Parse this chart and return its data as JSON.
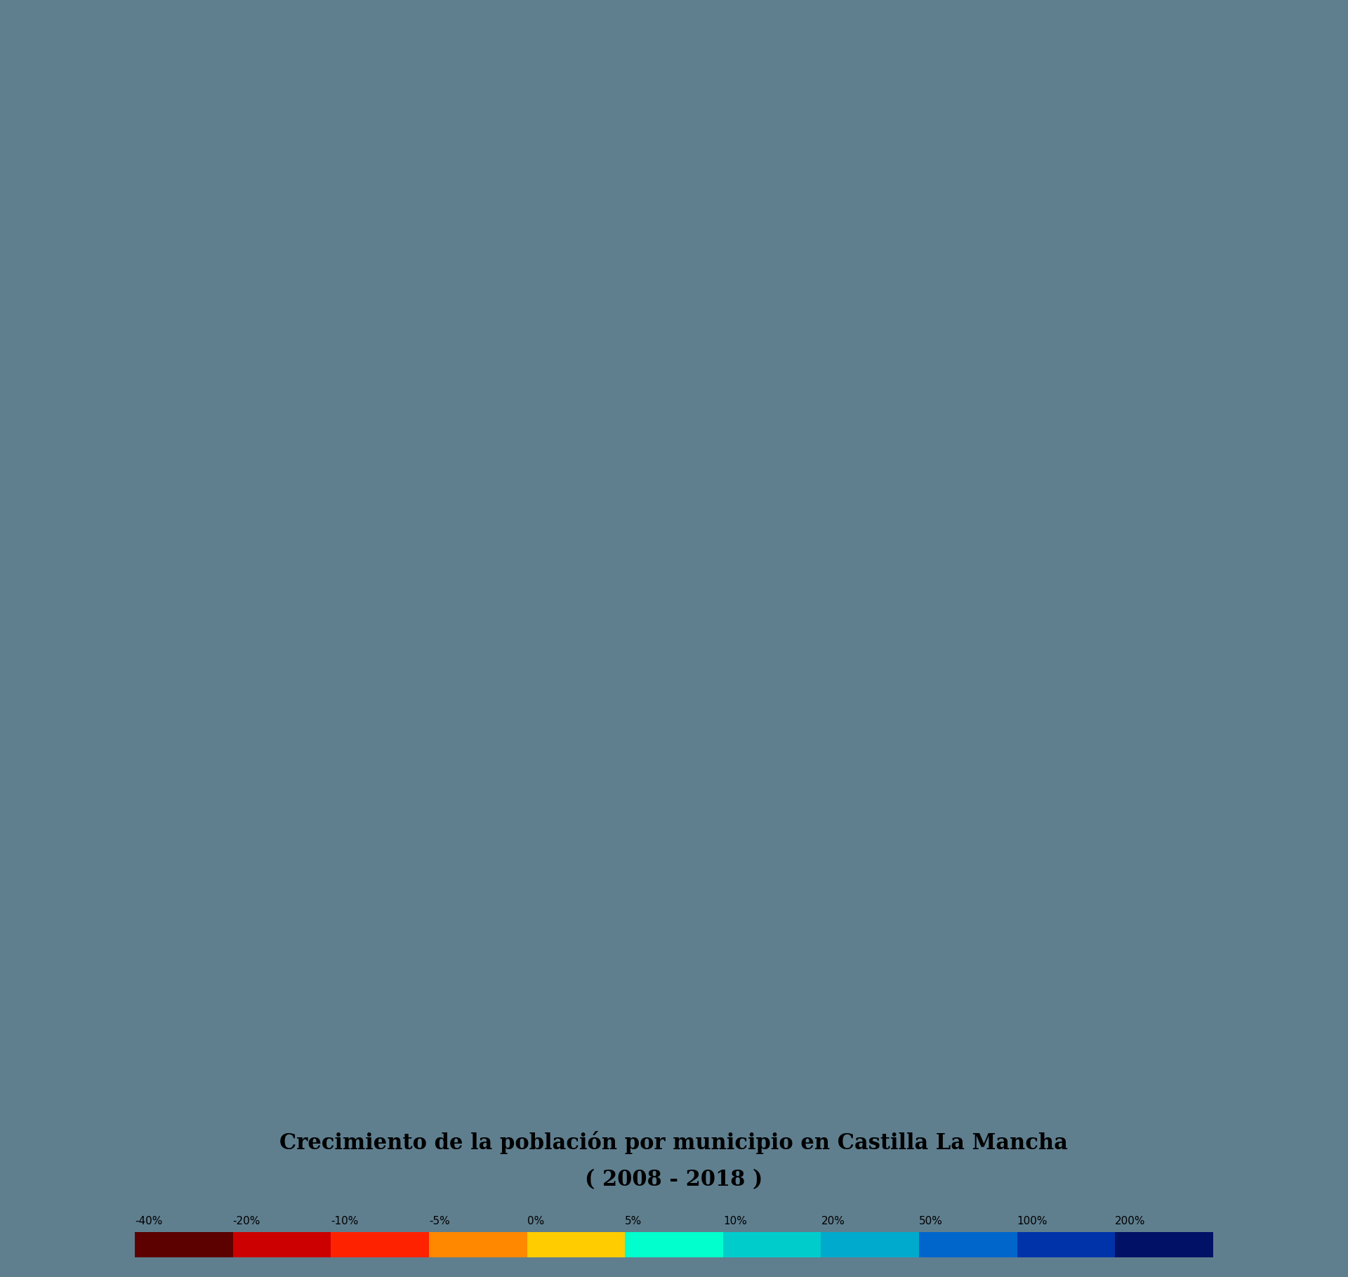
{
  "title_line1": "Crecimiento de la población por municipio en Castilla La Mancha",
  "title_line2": "( 2008 - 2018 )",
  "title_fontsize": 22,
  "subtitle_fontsize": 22,
  "background_color": "#5f7f8f",
  "legend_labels": [
    "-40%",
    "-20%",
    "-10%",
    "-5%",
    "0%",
    "5%",
    "10%",
    "20%",
    "50%",
    "100%",
    "200%"
  ],
  "legend_colors": [
    "#5c0000",
    "#cc0000",
    "#ff2200",
    "#ff8800",
    "#ffcc00",
    "#00ffcc",
    "#00cccc",
    "#00aacc",
    "#0066cc",
    "#0033aa",
    "#001166"
  ],
  "colorbar_bounds": [
    -40,
    -20,
    -10,
    -5,
    0,
    5,
    10,
    20,
    50,
    100,
    200,
    300
  ],
  "fig_width": 19.2,
  "fig_height": 18.19
}
